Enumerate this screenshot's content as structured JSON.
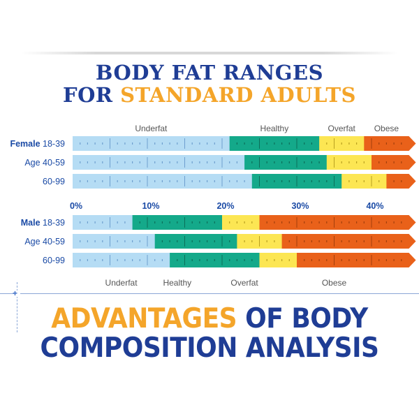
{
  "title": {
    "line1": "BODY FAT RANGES",
    "line2_prefix": "FOR",
    "line2_highlight": "STANDARD ADULTS"
  },
  "bottom_title": {
    "line1_highlight": "ADVANTAGES",
    "line1_rest": "OF BODY",
    "line2": "COMPOSITION ANALYSIS"
  },
  "colors": {
    "underfat": "#b5dcf4",
    "healthy": "#14a98a",
    "overfat": "#fce653",
    "obese": "#e9611a",
    "title_blue": "#1f3d95",
    "title_orange": "#f4a52a",
    "label_blue": "#1a4aa5"
  },
  "chart_data": {
    "type": "bar",
    "orientation": "horizontal-stacked-ranges",
    "x_unit": "% body fat",
    "xlim": [
      0,
      45
    ],
    "x_ticks": [
      0,
      10,
      20,
      30,
      40
    ],
    "x_tick_labels": [
      "0%",
      "10%",
      "20%",
      "30%",
      "40%"
    ],
    "categories": [
      "Underfat",
      "Healthy",
      "Overfat",
      "Obese"
    ],
    "female": {
      "top_category_labels": [
        "Underfat",
        "Healthy",
        "Overfat",
        "Obese"
      ],
      "groups": [
        {
          "label_bold": "Female",
          "label": "18-39",
          "thresholds": [
            21,
            33,
            39
          ]
        },
        {
          "label_bold": "",
          "label": "Age 40-59",
          "thresholds": [
            23,
            34,
            40
          ]
        },
        {
          "label_bold": "",
          "label": "60-99",
          "thresholds": [
            24,
            36,
            42
          ]
        }
      ]
    },
    "male": {
      "bottom_category_labels": [
        "Underfat",
        "Healthy",
        "Overfat",
        "Obese"
      ],
      "groups": [
        {
          "label_bold": "Male",
          "label": "18-39",
          "thresholds": [
            8,
            20,
            25
          ]
        },
        {
          "label_bold": "",
          "label": "Age 40-59",
          "thresholds": [
            11,
            22,
            28
          ]
        },
        {
          "label_bold": "",
          "label": "60-99",
          "thresholds": [
            13,
            25,
            30
          ]
        }
      ]
    }
  }
}
